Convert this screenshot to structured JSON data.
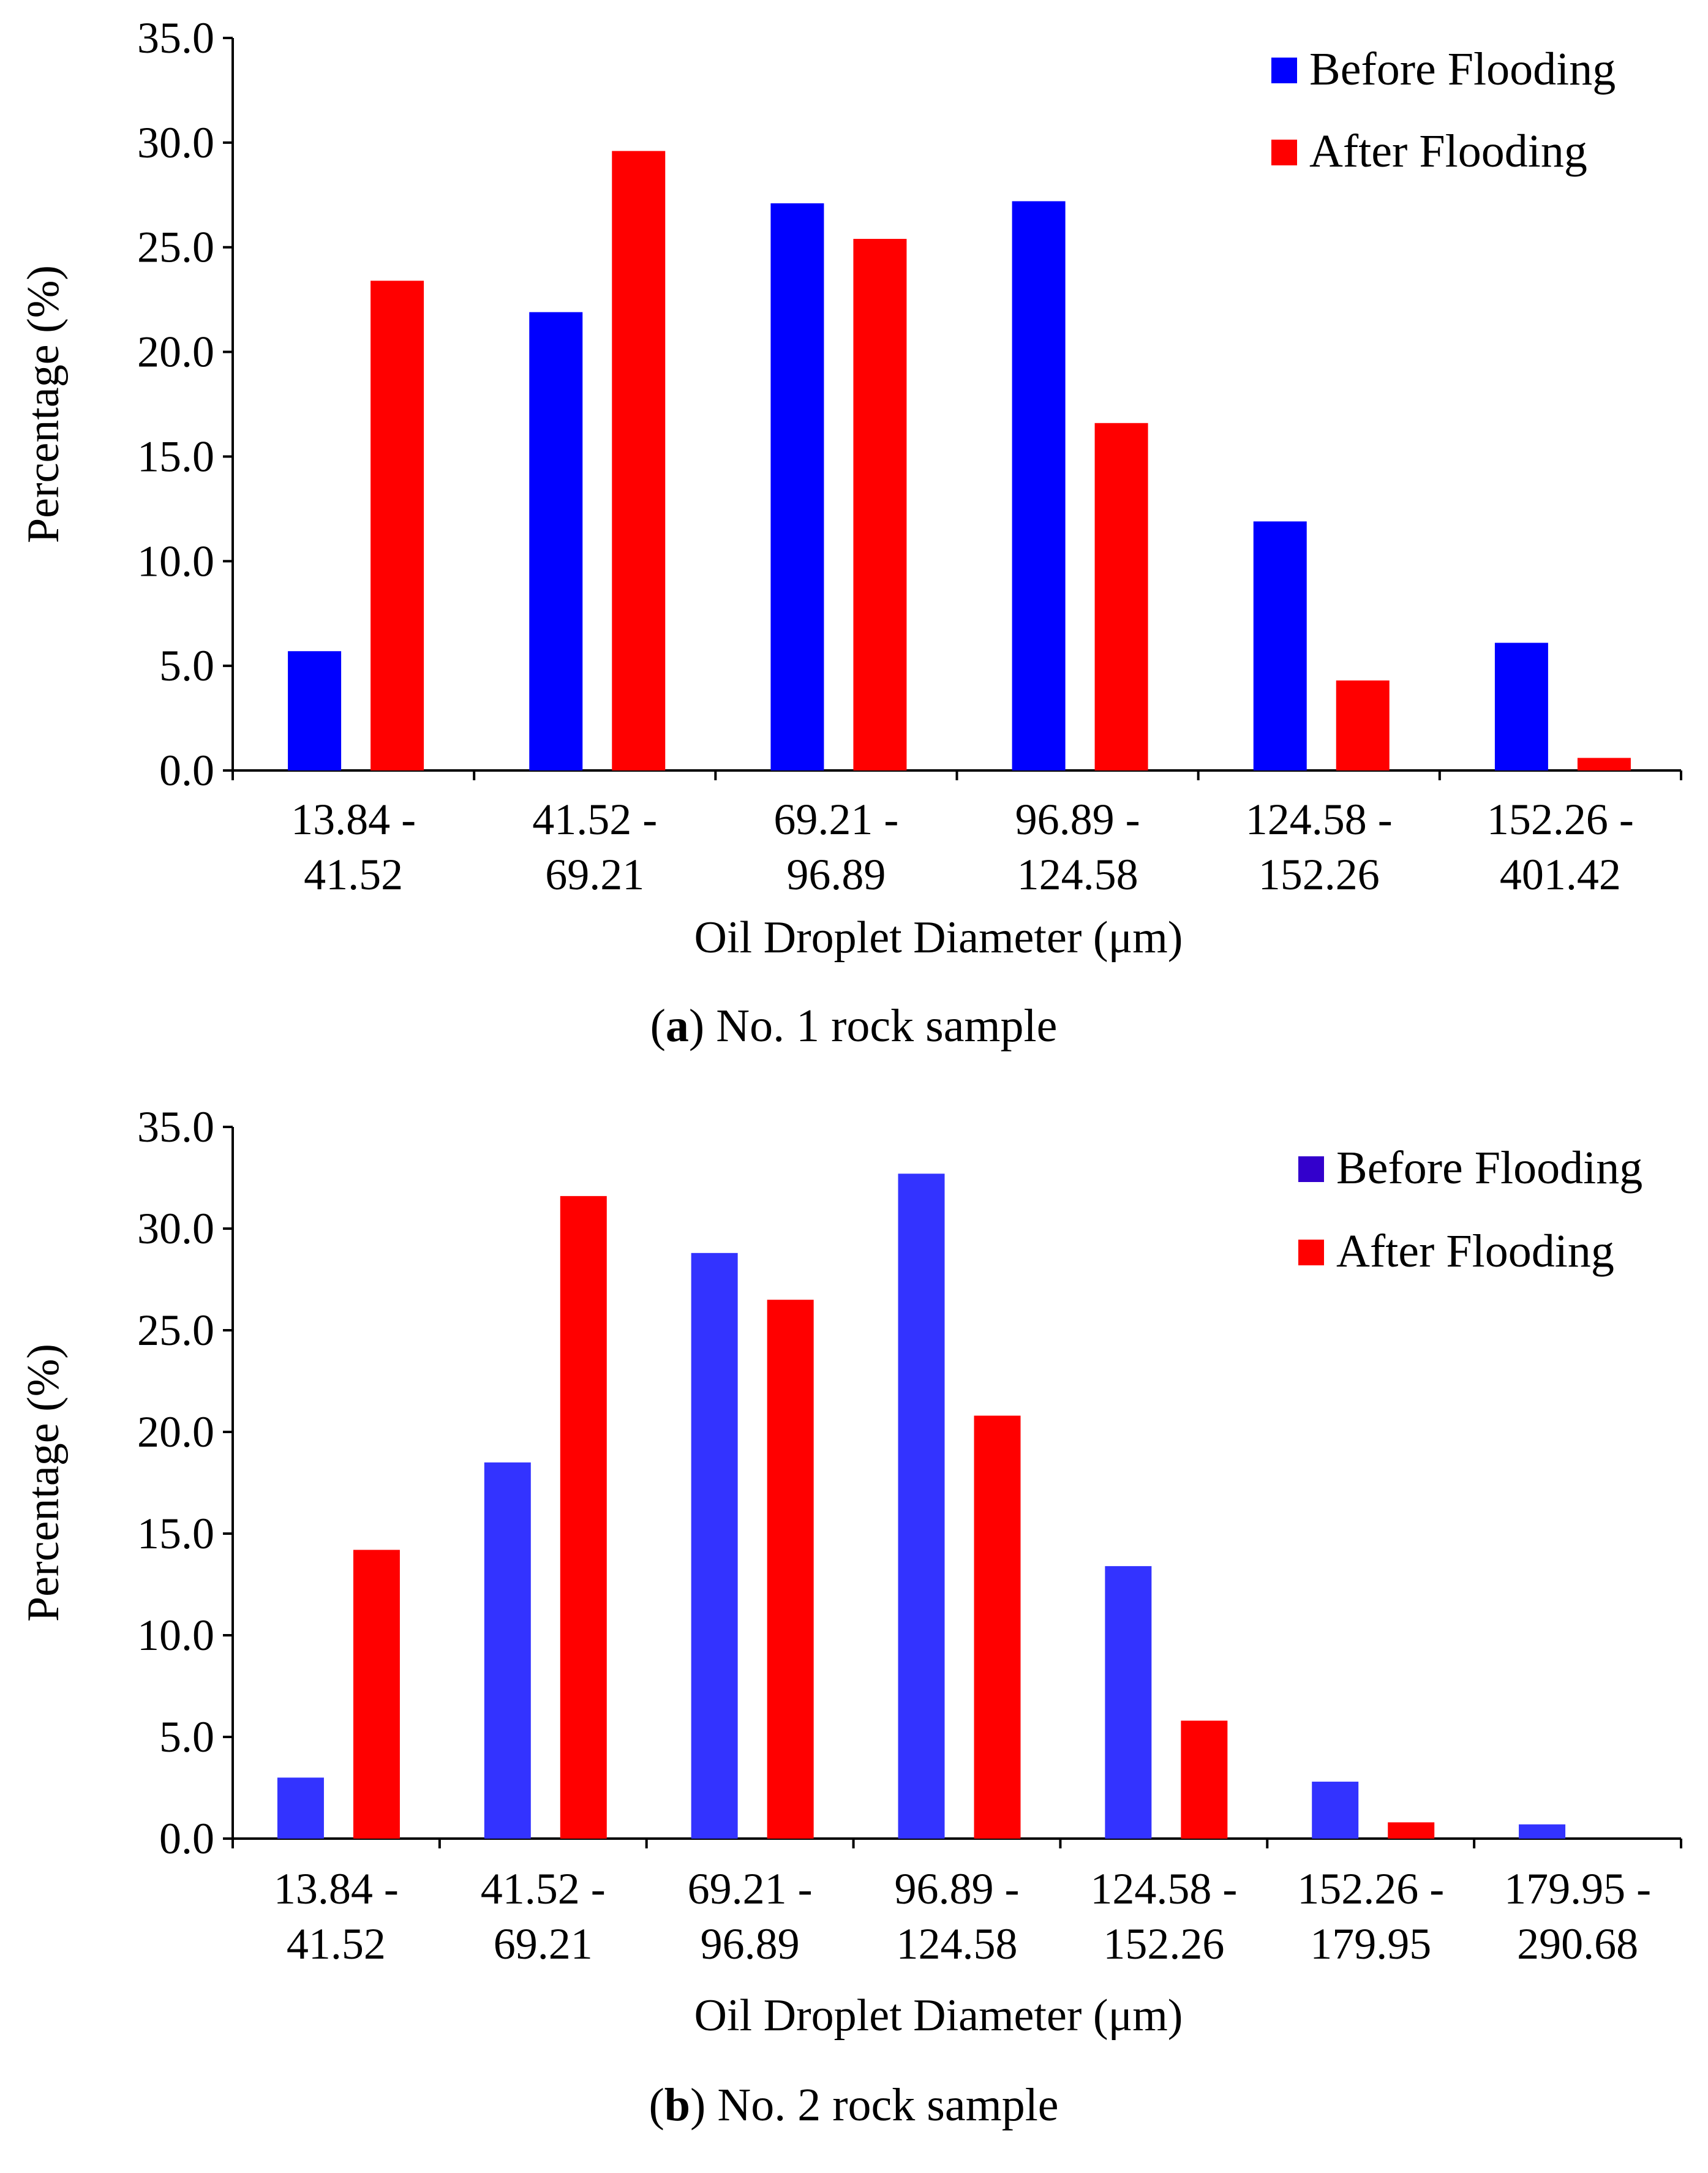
{
  "chart_data": [
    {
      "type": "bar",
      "panel": "a",
      "caption_letter": "a",
      "caption_text": ") No. 1 rock sample",
      "caption_open": "(",
      "xlabel": "Oil Droplet Diameter (μm)",
      "ylabel": "Percentage (%)",
      "ylim": [
        0,
        35
      ],
      "yticks": [
        "0.0",
        "5.0",
        "10.0",
        "15.0",
        "20.0",
        "25.0",
        "30.0",
        "35.0"
      ],
      "categories": [
        [
          "13.84 -",
          "41.52"
        ],
        [
          "41.52 -",
          "69.21"
        ],
        [
          "69.21 -",
          "96.89"
        ],
        [
          "96.89 -",
          "124.58"
        ],
        [
          "124.58 -",
          "152.26"
        ],
        [
          "152.26 -",
          "401.42"
        ]
      ],
      "legend_position": "top-right",
      "series": [
        {
          "name": "Before Flooding",
          "color": "#0000ff",
          "values": [
            5.7,
            21.9,
            27.1,
            27.2,
            11.9,
            6.1
          ]
        },
        {
          "name": "After Flooding",
          "color": "#ff0000",
          "values": [
            23.4,
            29.6,
            25.4,
            16.6,
            4.3,
            0.6
          ]
        }
      ]
    },
    {
      "type": "bar",
      "panel": "b",
      "caption_letter": "b",
      "caption_text": ") No. 2 rock sample",
      "caption_open": "(",
      "xlabel": "Oil Droplet Diameter (μm)",
      "ylabel": "Percentage (%)",
      "ylim": [
        0,
        35
      ],
      "yticks": [
        "0.0",
        "5.0",
        "10.0",
        "15.0",
        "20.0",
        "25.0",
        "30.0",
        "35.0"
      ],
      "categories": [
        [
          "13.84 -",
          "41.52"
        ],
        [
          "41.52 -",
          "69.21"
        ],
        [
          "69.21 -",
          "96.89"
        ],
        [
          "96.89 -",
          "124.58"
        ],
        [
          "124.58 -",
          "152.26"
        ],
        [
          "152.26 -",
          "179.95"
        ],
        [
          "179.95 -",
          "290.68"
        ]
      ],
      "legend_position": "top-right",
      "series": [
        {
          "name": "Before Flooding",
          "color": "#3333ff",
          "legend_color": "#3300cc",
          "values": [
            3.0,
            18.5,
            28.8,
            32.7,
            13.4,
            2.8,
            0.7
          ]
        },
        {
          "name": "After Flooding",
          "color": "#ff0000",
          "values": [
            14.2,
            31.6,
            26.5,
            20.8,
            5.8,
            0.8,
            0.0
          ]
        }
      ]
    }
  ]
}
